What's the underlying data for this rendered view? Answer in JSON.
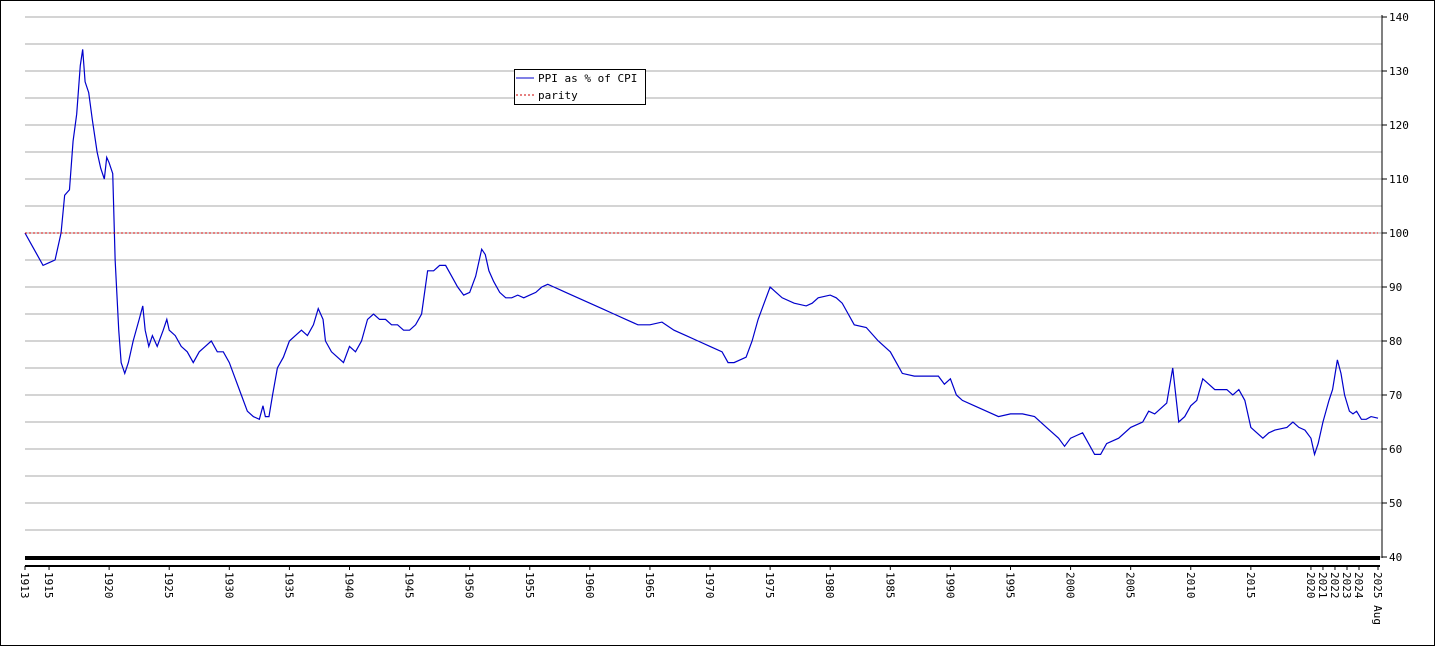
{
  "chart_data": {
    "type": "line",
    "x": [
      1913,
      1913.5,
      1914,
      1914.5,
      1915,
      1915.5,
      1916,
      1916.3,
      1916.7,
      1917,
      1917.3,
      1917.6,
      1917.8,
      1918,
      1918.3,
      1918.6,
      1919,
      1919.3,
      1919.6,
      1919.8,
      1920,
      1920.3,
      1920.5,
      1920.8,
      1921,
      1921.3,
      1921.6,
      1922,
      1922.5,
      1922.8,
      1923,
      1923.3,
      1923.6,
      1924,
      1924.5,
      1924.8,
      1925,
      1925.5,
      1926,
      1926.5,
      1927,
      1927.5,
      1928,
      1928.5,
      1929,
      1929.5,
      1930,
      1930.5,
      1931,
      1931.5,
      1932,
      1932.5,
      1932.8,
      1933,
      1933.3,
      1933.6,
      1934,
      1934.5,
      1935,
      1935.5,
      1936,
      1936.5,
      1937,
      1937.4,
      1937.8,
      1938,
      1938.5,
      1939,
      1939.5,
      1940,
      1940.5,
      1941,
      1941.5,
      1942,
      1942.5,
      1943,
      1943.5,
      1944,
      1944.5,
      1945,
      1945.5,
      1946,
      1946.5,
      1947,
      1947.5,
      1948,
      1948.5,
      1949,
      1949.5,
      1950,
      1950.5,
      1951,
      1951.3,
      1951.6,
      1952,
      1952.5,
      1953,
      1953.5,
      1954,
      1954.5,
      1955,
      1955.5,
      1956,
      1956.5,
      1957,
      1957.5,
      1958,
      1959,
      1960,
      1961,
      1962,
      1963,
      1964,
      1965,
      1966,
      1967,
      1968,
      1969,
      1970,
      1971,
      1971.5,
      1972,
      1973,
      1973.5,
      1974,
      1974.5,
      1975,
      1975.5,
      1976,
      1977,
      1978,
      1978.5,
      1979,
      1980,
      1980.5,
      1981,
      1981.5,
      1982,
      1983,
      1984,
      1985,
      1985.5,
      1986,
      1987,
      1988,
      1989,
      1989.5,
      1990,
      1990.5,
      1991,
      1992,
      1993,
      1994,
      1995,
      1996,
      1997,
      1998,
      1999,
      1999.5,
      2000,
      2000.5,
      2001,
      2001.5,
      2002,
      2002.5,
      2003,
      2004,
      2005,
      2006,
      2006.5,
      2007,
      2008,
      2008.5,
      2009,
      2009.5,
      2010,
      2010.5,
      2011,
      2011.5,
      2012,
      2013,
      2013.5,
      2014,
      2014.5,
      2015,
      2015.5,
      2016,
      2016.5,
      2017,
      2018,
      2018.5,
      2019,
      2019.5,
      2020,
      2020.3,
      2020.6,
      2021,
      2021.5,
      2021.8,
      2022.2,
      2022.5,
      2022.8,
      2023.2,
      2023.5,
      2023.8,
      2024.2,
      2024.6,
      2025,
      2025.58
    ],
    "series": [
      {
        "name": "PPI as % of CPI",
        "color": "#0000cc",
        "style": "solid",
        "values": [
          100,
          98,
          96,
          94,
          94.5,
          95,
          100,
          107,
          108,
          117,
          122,
          131,
          134,
          128,
          126,
          121,
          115,
          112,
          110,
          114,
          113,
          111,
          95,
          82,
          76,
          74,
          76,
          80,
          84,
          86.5,
          82,
          79,
          81,
          79,
          82,
          84,
          82,
          81,
          79,
          78,
          76,
          78,
          79,
          80,
          78,
          78,
          76,
          73,
          70,
          67,
          66,
          65.5,
          68,
          66,
          66,
          70,
          75,
          77,
          80,
          81,
          82,
          81,
          83,
          86,
          84,
          80,
          78,
          77,
          76,
          79,
          78,
          80,
          84,
          85,
          84,
          84,
          83,
          83,
          82,
          82,
          83,
          85,
          93,
          93,
          94,
          94,
          92,
          90,
          88.5,
          89,
          92,
          97,
          96,
          93,
          91,
          89,
          88,
          88,
          88.5,
          88,
          88.5,
          89,
          90,
          90.5,
          90,
          89.5,
          89,
          88,
          87,
          86,
          85,
          84,
          83,
          83,
          83.5,
          82,
          81,
          80,
          79,
          78,
          76,
          76,
          77,
          80,
          84,
          87,
          90,
          89,
          88,
          87,
          86.5,
          87,
          88,
          88.5,
          88,
          87,
          85,
          83,
          82.5,
          80,
          78,
          76,
          74,
          73.5,
          73.5,
          73.5,
          72,
          73,
          70,
          69,
          68,
          67,
          66,
          66.5,
          66.5,
          66,
          64,
          62,
          60.5,
          62,
          62.5,
          63,
          61,
          59,
          59,
          61,
          62,
          64,
          65,
          67,
          66.5,
          68.5,
          75,
          65,
          66,
          68,
          69,
          73,
          72,
          71,
          71,
          70,
          71,
          69,
          64,
          63,
          62,
          63,
          63.5,
          64,
          65,
          64,
          63.5,
          62,
          59,
          61,
          65,
          69,
          71,
          76.5,
          74,
          70,
          67,
          66.5,
          67,
          65.5,
          65.5,
          66,
          65.7
        ]
      },
      {
        "name": "parity",
        "color": "#cc0000",
        "style": "dotted",
        "x": [
          1913,
          2025.58
        ],
        "values": [
          100,
          100
        ]
      }
    ],
    "xlim": [
      1913,
      2025.58
    ],
    "xticks": [
      1913,
      1915,
      1920,
      1925,
      1930,
      1935,
      1940,
      1945,
      1950,
      1955,
      1960,
      1965,
      1970,
      1975,
      1980,
      1985,
      1990,
      1995,
      2000,
      2005,
      2010,
      2015,
      2020,
      2021,
      2022,
      2023,
      2024,
      {
        "value": 2025.58,
        "label": "2025 Aug"
      }
    ],
    "ylim": [
      40,
      140
    ],
    "yticks": [
      40,
      50,
      60,
      70,
      80,
      90,
      100,
      110,
      120,
      130,
      140
    ],
    "minor_grid": [
      45,
      55,
      65,
      75,
      85,
      95,
      105,
      115,
      125,
      135
    ],
    "grid": true,
    "legend": "top-center"
  }
}
